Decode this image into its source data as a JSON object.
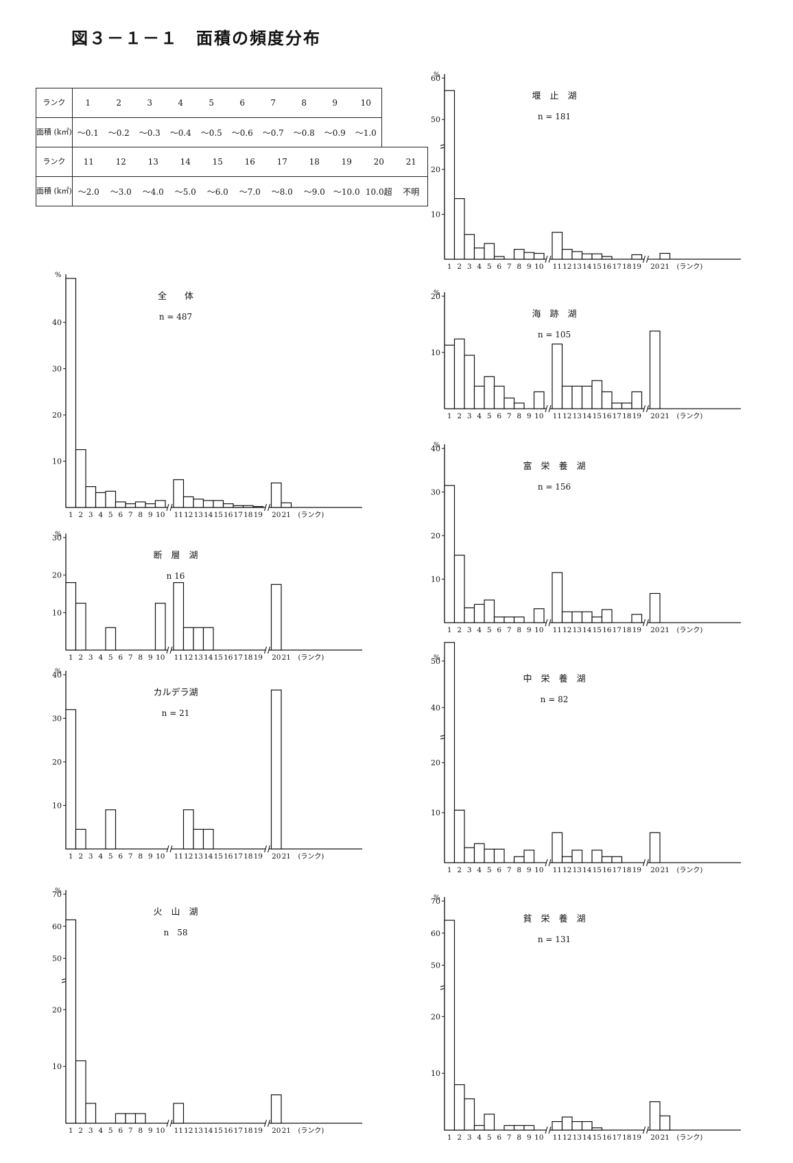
{
  "title": "図３－１－１　面積の頻度分布",
  "rank_table": {
    "row1": {
      "label_rank": "ランク",
      "label_area": "面積 (k㎡)",
      "ranks": [
        "1",
        "2",
        "3",
        "4",
        "5",
        "6",
        "7",
        "8",
        "9",
        "10"
      ],
      "areas": [
        "～0.1",
        "～0.2",
        "～0.3",
        "～0.4",
        "～0.5",
        "～0.6",
        "～0.7",
        "～0.8",
        "～0.9",
        "～1.0"
      ]
    },
    "row2": {
      "label_rank": "ランク",
      "label_area": "面積 (k㎡)",
      "ranks": [
        "11",
        "12",
        "13",
        "14",
        "15",
        "16",
        "17",
        "18",
        "19",
        "20",
        "21"
      ],
      "areas": [
        "～2.0",
        "～3.0",
        "～4.0",
        "～5.0",
        "～6.0",
        "～7.0",
        "～8.0",
        "～9.0",
        "～10.0",
        "10.0超",
        "不明"
      ]
    }
  },
  "axis_suffix": "(ランク)",
  "percent_mark": "%",
  "chart_data": [
    {
      "id": "zentai",
      "type": "bar",
      "title": "全　　体",
      "n": "n = 487",
      "categories": [
        "1",
        "2",
        "3",
        "4",
        "5",
        "6",
        "7",
        "8",
        "9",
        "10",
        "11",
        "12",
        "13",
        "14",
        "15",
        "16",
        "17",
        "18",
        "19",
        "20",
        "21"
      ],
      "values": [
        49.5,
        12.5,
        4.5,
        3.2,
        3.5,
        1.2,
        0.8,
        1.2,
        0.8,
        1.5,
        6,
        2.3,
        1.8,
        1.5,
        1.5,
        0.8,
        0.4,
        0.4,
        0.2,
        5.3,
        1
      ],
      "yticks": [
        10,
        20,
        30,
        40
      ],
      "ylim": [
        0,
        49.5
      ],
      "axis_break": false
    },
    {
      "id": "danso",
      "type": "bar",
      "title": "断　層　湖",
      "n": "n 16",
      "categories": [
        "1",
        "2",
        "3",
        "4",
        "5",
        "6",
        "7",
        "8",
        "9",
        "10",
        "11",
        "12",
        "13",
        "14",
        "15",
        "16",
        "17",
        "18",
        "19",
        "20",
        "21"
      ],
      "values": [
        18,
        12.5,
        0,
        0,
        6,
        0,
        0,
        0,
        0,
        12.5,
        18,
        6,
        6,
        6,
        0,
        0,
        0,
        0,
        0,
        17.5,
        0
      ],
      "yticks": [
        10,
        20,
        30
      ],
      "ylim": [
        0,
        30
      ],
      "axis_break": false
    },
    {
      "id": "caldera",
      "type": "bar",
      "title": "カルデラ湖",
      "n": "n = 21",
      "categories": [
        "1",
        "2",
        "3",
        "4",
        "5",
        "6",
        "7",
        "8",
        "9",
        "10",
        "11",
        "12",
        "13",
        "14",
        "15",
        "16",
        "17",
        "18",
        "19",
        "20",
        "21"
      ],
      "values": [
        32,
        4.5,
        0,
        0,
        9,
        0,
        0,
        0,
        0,
        0,
        0,
        9,
        4.5,
        4.5,
        0,
        0,
        0,
        0,
        0,
        36.5,
        0
      ],
      "yticks": [
        10,
        20,
        30,
        40
      ],
      "ylim": [
        0,
        40
      ],
      "axis_break": false
    },
    {
      "id": "kazan",
      "type": "bar",
      "title": "火　山　湖",
      "n": "n　58",
      "categories": [
        "1",
        "2",
        "3",
        "4",
        "5",
        "6",
        "7",
        "8",
        "9",
        "10",
        "11",
        "12",
        "13",
        "14",
        "15",
        "16",
        "17",
        "18",
        "19",
        "20",
        "21"
      ],
      "values": [
        62,
        11,
        3.5,
        0,
        0,
        1.7,
        1.7,
        1.7,
        0,
        0,
        3.5,
        0,
        0,
        0,
        0,
        0,
        0,
        0,
        0,
        5,
        0
      ],
      "yticks": [
        10,
        20,
        50,
        60,
        70
      ],
      "ylim": [
        0,
        70
      ],
      "axis_break": true
    },
    {
      "id": "sekitome",
      "type": "bar",
      "title": "堰　止　湖",
      "n": "n = 181",
      "categories": [
        "1",
        "2",
        "3",
        "4",
        "5",
        "6",
        "7",
        "8",
        "9",
        "10",
        "11",
        "12",
        "13",
        "14",
        "15",
        "16",
        "17",
        "18",
        "19",
        "20",
        "21"
      ],
      "values": [
        57,
        13.5,
        5.5,
        2.5,
        3.5,
        0.6,
        0,
        2.2,
        1.5,
        1.3,
        6,
        2.2,
        1.7,
        1.2,
        1.2,
        0.6,
        0,
        0,
        1,
        0,
        1.3
      ],
      "yticks": [
        10,
        20,
        50,
        60
      ],
      "ylim": [
        0,
        60
      ],
      "axis_break": true
    },
    {
      "id": "shinshoku",
      "type": "bar",
      "title": "海　跡　湖",
      "n": "n = 105",
      "categories": [
        "1",
        "2",
        "3",
        "4",
        "5",
        "6",
        "7",
        "8",
        "9",
        "10",
        "11",
        "12",
        "13",
        "14",
        "15",
        "16",
        "17",
        "18",
        "19",
        "20",
        "21"
      ],
      "values": [
        11.3,
        12.4,
        9.5,
        4,
        5.7,
        4,
        1.9,
        1,
        0,
        3,
        11.5,
        4,
        4,
        4,
        5,
        3,
        1,
        1,
        3,
        13.8,
        0
      ],
      "yticks": [
        10,
        20
      ],
      "ylim": [
        0,
        20
      ],
      "axis_break": false
    },
    {
      "id": "fueiyo",
      "type": "bar",
      "title": "富　栄　養　湖",
      "n": "n = 156",
      "categories": [
        "1",
        "2",
        "3",
        "4",
        "5",
        "6",
        "7",
        "8",
        "9",
        "10",
        "11",
        "12",
        "13",
        "14",
        "15",
        "16",
        "17",
        "18",
        "19",
        "20",
        "21"
      ],
      "values": [
        31.5,
        15.5,
        3.4,
        4.2,
        5.2,
        1.3,
        1.3,
        1.3,
        0,
        3.2,
        11.5,
        2.5,
        2.5,
        2.5,
        1.3,
        3,
        0,
        0,
        1.9,
        6.7,
        0
      ],
      "yticks": [
        10,
        20,
        30,
        40
      ],
      "ylim": [
        0,
        40
      ],
      "axis_break": false
    },
    {
      "id": "chueiyo",
      "type": "bar",
      "title": "中　栄　養　湖",
      "n": "n = 82",
      "categories": [
        "1",
        "2",
        "3",
        "4",
        "5",
        "6",
        "7",
        "8",
        "9",
        "10",
        "11",
        "12",
        "13",
        "14",
        "15",
        "16",
        "17",
        "18",
        "19",
        "20",
        "21"
      ],
      "values": [
        54,
        10.5,
        3,
        3.8,
        2.7,
        2.7,
        0,
        1.2,
        2.5,
        0,
        6,
        1.2,
        2.5,
        0,
        2.5,
        1.2,
        1.2,
        0,
        0,
        6,
        0
      ],
      "yticks": [
        10,
        20,
        40,
        50
      ],
      "ylim": [
        0,
        50
      ],
      "axis_break": true
    },
    {
      "id": "hineiyo",
      "type": "bar",
      "title": "貧　栄　養　湖",
      "n": "n = 131",
      "categories": [
        "1",
        "2",
        "3",
        "4",
        "5",
        "6",
        "7",
        "8",
        "9",
        "10",
        "11",
        "12",
        "13",
        "14",
        "15",
        "16",
        "17",
        "18",
        "19",
        "20",
        "21"
      ],
      "values": [
        64,
        8,
        5.5,
        0.8,
        2.8,
        0,
        0.8,
        0.8,
        0.8,
        0,
        1.5,
        2.3,
        1.5,
        1.5,
        0.4,
        0,
        0,
        0,
        0,
        5,
        2.5
      ],
      "yticks": [
        10,
        20,
        50,
        60,
        70
      ],
      "ylim": [
        0,
        70
      ],
      "axis_break": true
    }
  ]
}
